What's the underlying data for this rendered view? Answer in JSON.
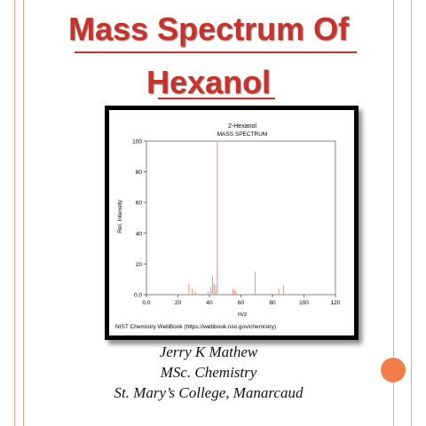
{
  "slide": {
    "title_line1": "Mass Spectrum Of",
    "title_line2": "Hexanol",
    "author": "Jerry K Mathew",
    "degree": "MSc. Chemistry",
    "college": "St. Mary’s College, Manarcaud",
    "accent_color": "#c8322a",
    "dot_color": "#f47d4a"
  },
  "chart_data": {
    "type": "bar",
    "title": "2-Hexanol",
    "subtitle": "MASS SPECTRUM",
    "xlabel": "m/z",
    "ylabel": "Rel. Intensity",
    "xlim": [
      0,
      120
    ],
    "ylim": [
      0,
      100
    ],
    "xticks": [
      "0.0",
      "20",
      "40",
      "60",
      "80",
      "100",
      "120"
    ],
    "yticks": [
      "0.0",
      "20",
      "40",
      "60",
      "80",
      "100"
    ],
    "source": "NIST Chemistry WebBook (https://webbook.nist.gov/chemistry)",
    "bar_color": "#e8938a",
    "peaks": [
      {
        "mz": 27,
        "intensity": 7
      },
      {
        "mz": 29,
        "intensity": 4
      },
      {
        "mz": 31,
        "intensity": 2
      },
      {
        "mz": 39,
        "intensity": 2
      },
      {
        "mz": 41,
        "intensity": 5
      },
      {
        "mz": 42,
        "intensity": 12
      },
      {
        "mz": 43,
        "intensity": 7
      },
      {
        "mz": 44,
        "intensity": 6
      },
      {
        "mz": 45,
        "intensity": 100
      },
      {
        "mz": 55,
        "intensity": 4
      },
      {
        "mz": 56,
        "intensity": 3
      },
      {
        "mz": 57,
        "intensity": 2
      },
      {
        "mz": 69,
        "intensity": 15
      },
      {
        "mz": 84,
        "intensity": 4
      },
      {
        "mz": 87,
        "intensity": 6
      }
    ]
  }
}
